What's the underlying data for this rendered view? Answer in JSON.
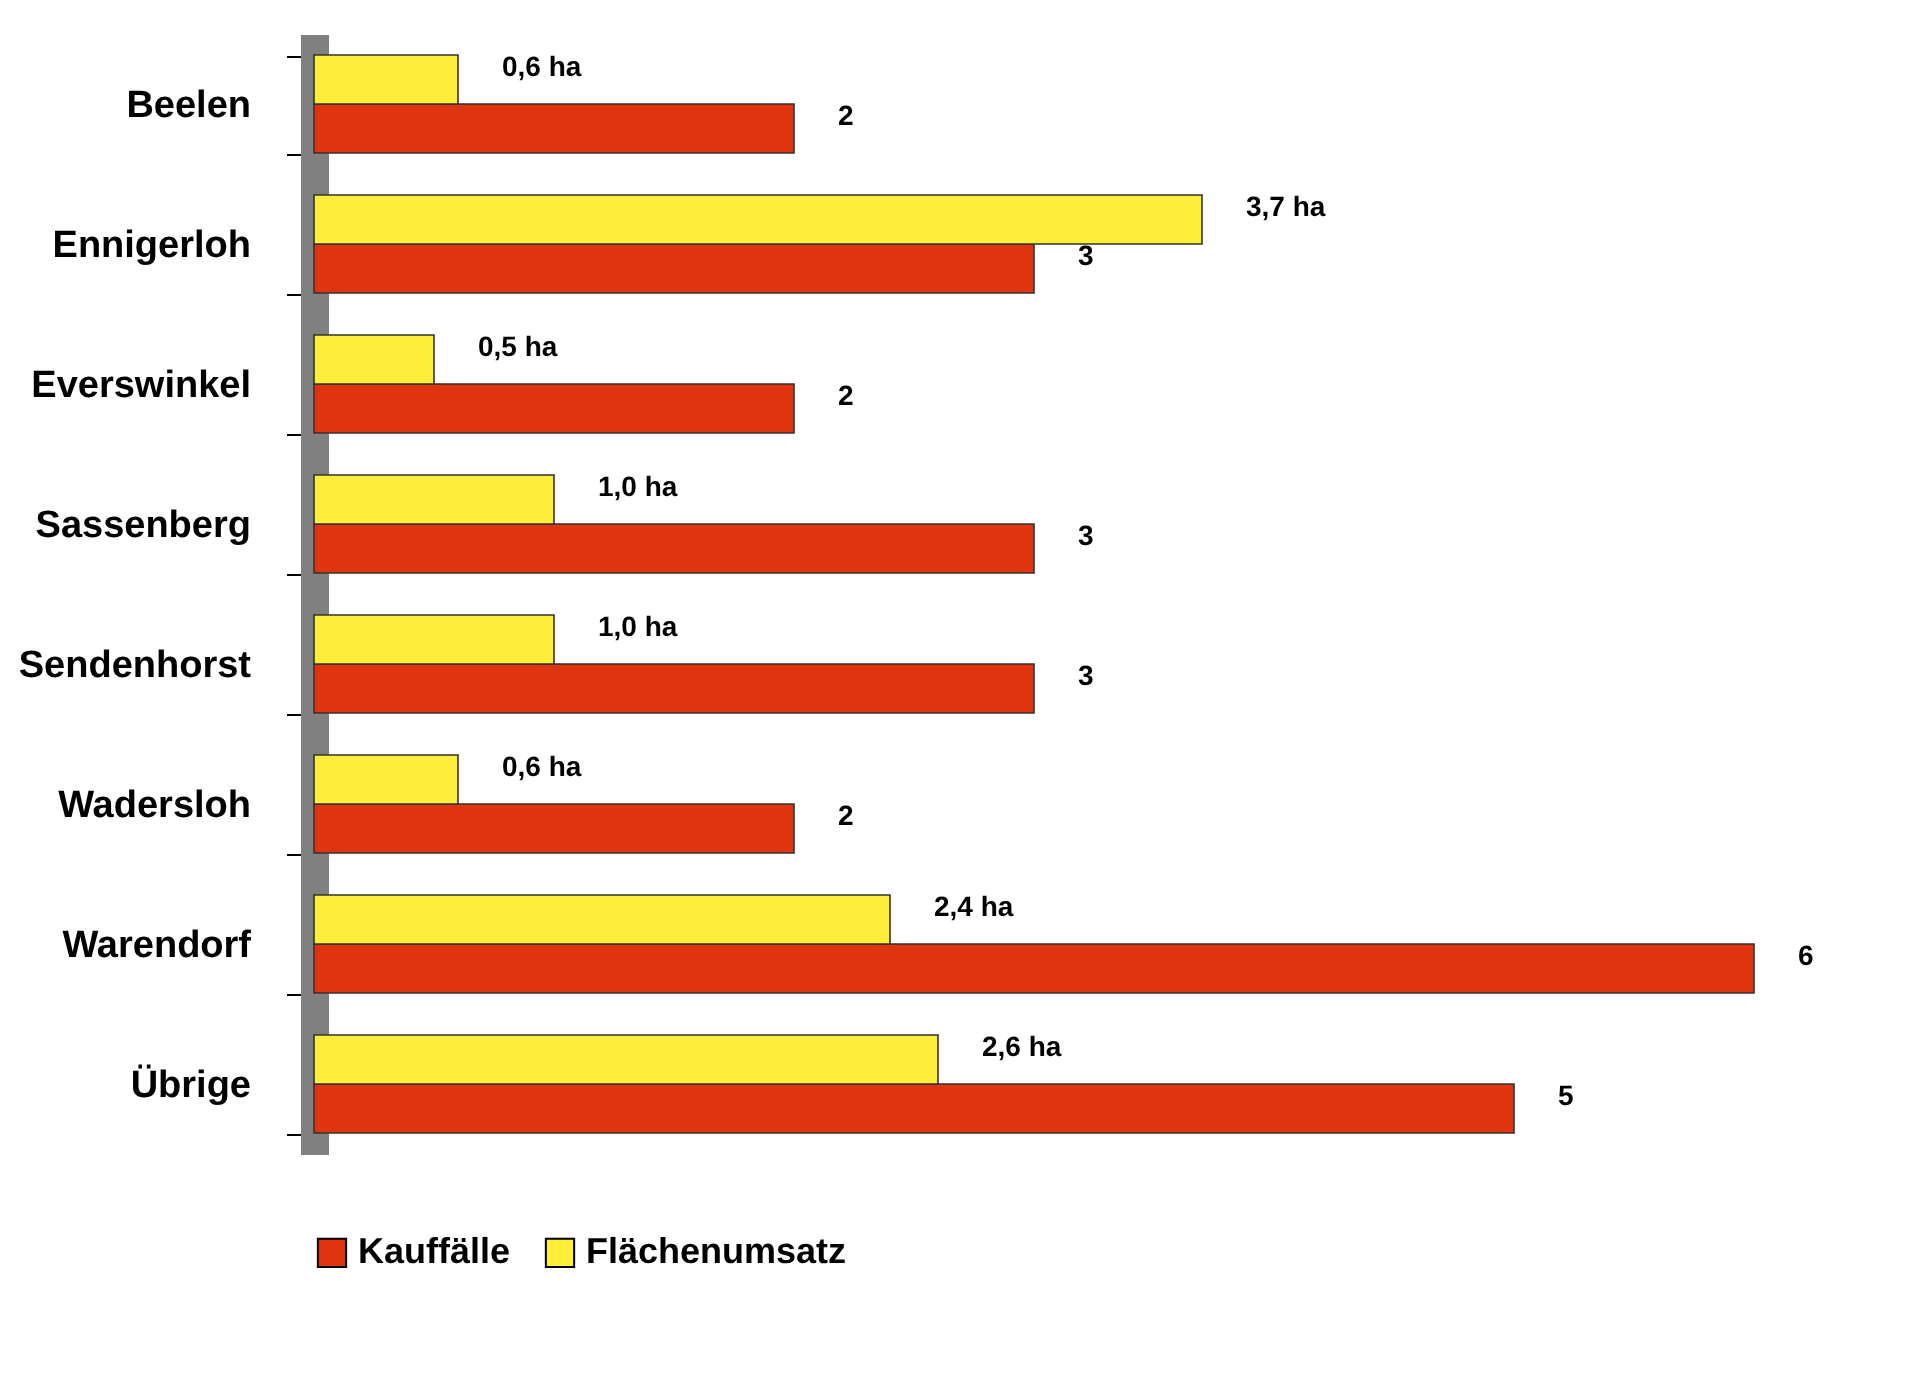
{
  "chart_data": {
    "type": "bar",
    "orientation": "horizontal",
    "categories": [
      "Beelen",
      "Ennigerloh",
      "Everswinkel",
      "Sassenberg",
      "Sendenhorst",
      "Wadersloh",
      "Warendorf",
      "Übrige"
    ],
    "series": [
      {
        "name": "Kauffälle",
        "color": "#e0340f",
        "values": [
          2,
          3,
          2,
          3,
          3,
          2,
          6,
          5
        ],
        "value_labels": [
          "2",
          "3",
          "2",
          "3",
          "3",
          "2",
          "6",
          "5"
        ]
      },
      {
        "name": "Flächenumsatz",
        "color": "#ffef3a",
        "values": [
          0.6,
          3.7,
          0.5,
          1.0,
          1.0,
          0.6,
          2.4,
          2.6
        ],
        "value_labels": [
          "0,6 ha",
          "3,7 ha",
          "0,5 ha",
          "1,0 ha",
          "1,0 ha",
          "0,6 ha",
          "2,4 ha",
          "2,6 ha"
        ]
      }
    ],
    "legend": "bottom",
    "grid": false
  }
}
